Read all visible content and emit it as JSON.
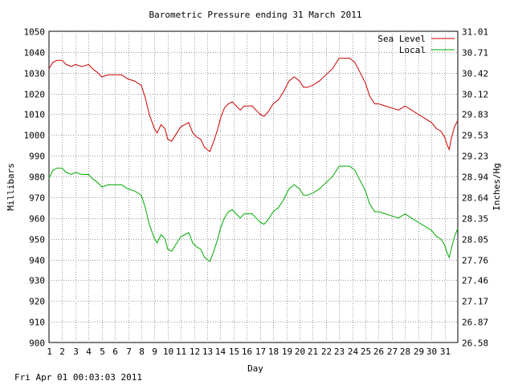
{
  "chart_data": {
    "type": "line",
    "title": "Barometric Pressure ending 31 March 2011",
    "xlabel": "Day",
    "ylabel_left": "Millibars",
    "ylabel_right": "Inches/Hg",
    "x_ticks": [
      "1",
      "2",
      "3",
      "4",
      "5",
      "6",
      "7",
      "8",
      "9",
      "10",
      "11",
      "12",
      "13",
      "14",
      "15",
      "16",
      "17",
      "18",
      "19",
      "20",
      "21",
      "22",
      "23",
      "24",
      "25",
      "26",
      "27",
      "28",
      "29",
      "30",
      "31"
    ],
    "xlim": [
      1,
      32
    ],
    "ylim": [
      900,
      1050
    ],
    "y_ticks_left": [
      "1050",
      "1040",
      "1030",
      "1020",
      "1010",
      "1000",
      "990",
      "980",
      "970",
      "960",
      "950",
      "940",
      "930",
      "920",
      "910",
      "900"
    ],
    "y_ticks_right": [
      "31.01",
      "30.71",
      "30.42",
      "30.12",
      "29.83",
      "29.53",
      "29.23",
      "28.94",
      "28.64",
      "28.35",
      "28.05",
      "27.76",
      "27.46",
      "27.17",
      "26.87",
      "26.58"
    ],
    "grid": true,
    "legend_position": "top-right",
    "series": [
      {
        "name": "Sea Level",
        "color": "#cc0000",
        "points": [
          [
            1,
            1032
          ],
          [
            1.3,
            1035
          ],
          [
            1.6,
            1036
          ],
          [
            2,
            1036
          ],
          [
            2.3,
            1034
          ],
          [
            2.7,
            1033
          ],
          [
            3,
            1034
          ],
          [
            3.5,
            1033
          ],
          [
            4,
            1034
          ],
          [
            4.3,
            1032
          ],
          [
            4.7,
            1030
          ],
          [
            5,
            1028
          ],
          [
            5.5,
            1029
          ],
          [
            6,
            1029
          ],
          [
            6.5,
            1029
          ],
          [
            7,
            1027
          ],
          [
            7.5,
            1026
          ],
          [
            8,
            1024
          ],
          [
            8.3,
            1018
          ],
          [
            8.6,
            1010
          ],
          [
            9,
            1003
          ],
          [
            9.2,
            1001
          ],
          [
            9.5,
            1005
          ],
          [
            9.8,
            1003
          ],
          [
            10,
            998
          ],
          [
            10.3,
            997
          ],
          [
            10.6,
            1000
          ],
          [
            11,
            1004
          ],
          [
            11.3,
            1005
          ],
          [
            11.6,
            1006
          ],
          [
            11.9,
            1001
          ],
          [
            12.2,
            999
          ],
          [
            12.5,
            998
          ],
          [
            12.8,
            994
          ],
          [
            13,
            993
          ],
          [
            13.2,
            992
          ],
          [
            13.5,
            997
          ],
          [
            13.8,
            1003
          ],
          [
            14,
            1008
          ],
          [
            14.3,
            1013
          ],
          [
            14.6,
            1015
          ],
          [
            14.9,
            1016
          ],
          [
            15.2,
            1014
          ],
          [
            15.5,
            1012
          ],
          [
            15.8,
            1014
          ],
          [
            16.1,
            1014
          ],
          [
            16.4,
            1014
          ],
          [
            16.7,
            1012
          ],
          [
            17,
            1010
          ],
          [
            17.3,
            1009
          ],
          [
            17.6,
            1011
          ],
          [
            18,
            1015
          ],
          [
            18.4,
            1017
          ],
          [
            18.8,
            1021
          ],
          [
            19.2,
            1026
          ],
          [
            19.6,
            1028
          ],
          [
            20,
            1026
          ],
          [
            20.3,
            1023
          ],
          [
            20.6,
            1023
          ],
          [
            21,
            1024
          ],
          [
            21.5,
            1026
          ],
          [
            22,
            1029
          ],
          [
            22.5,
            1032
          ],
          [
            23,
            1037
          ],
          [
            23.4,
            1037
          ],
          [
            23.8,
            1037
          ],
          [
            24.2,
            1035
          ],
          [
            24.6,
            1030
          ],
          [
            25,
            1025
          ],
          [
            25.3,
            1019
          ],
          [
            25.7,
            1015
          ],
          [
            26,
            1015
          ],
          [
            26.5,
            1014
          ],
          [
            27,
            1013
          ],
          [
            27.5,
            1012
          ],
          [
            28,
            1014
          ],
          [
            28.5,
            1012
          ],
          [
            29,
            1010
          ],
          [
            29.5,
            1008
          ],
          [
            30,
            1006
          ],
          [
            30.4,
            1003
          ],
          [
            30.7,
            1002
          ],
          [
            31,
            999
          ],
          [
            31.2,
            995
          ],
          [
            31.35,
            993
          ],
          [
            31.5,
            998
          ],
          [
            31.75,
            1004
          ],
          [
            32,
            1007
          ]
        ]
      },
      {
        "name": "Local",
        "color": "#00aa00",
        "points": [
          [
            1,
            979
          ],
          [
            1.3,
            983
          ],
          [
            1.6,
            984
          ],
          [
            2,
            984
          ],
          [
            2.3,
            982
          ],
          [
            2.7,
            981
          ],
          [
            3,
            982
          ],
          [
            3.5,
            981
          ],
          [
            4,
            981
          ],
          [
            4.3,
            979
          ],
          [
            4.7,
            977
          ],
          [
            5,
            975
          ],
          [
            5.5,
            976
          ],
          [
            6,
            976
          ],
          [
            6.5,
            976
          ],
          [
            7,
            974
          ],
          [
            7.5,
            973
          ],
          [
            8,
            971
          ],
          [
            8.3,
            965
          ],
          [
            8.6,
            957
          ],
          [
            9,
            950
          ],
          [
            9.2,
            948
          ],
          [
            9.5,
            952
          ],
          [
            9.8,
            950
          ],
          [
            10,
            945
          ],
          [
            10.3,
            944
          ],
          [
            10.6,
            947
          ],
          [
            11,
            951
          ],
          [
            11.3,
            952
          ],
          [
            11.6,
            953
          ],
          [
            11.9,
            948
          ],
          [
            12.2,
            946
          ],
          [
            12.5,
            945
          ],
          [
            12.8,
            941
          ],
          [
            13,
            940
          ],
          [
            13.2,
            939
          ],
          [
            13.5,
            944
          ],
          [
            13.8,
            950
          ],
          [
            14,
            955
          ],
          [
            14.3,
            960
          ],
          [
            14.6,
            963
          ],
          [
            14.9,
            964
          ],
          [
            15.2,
            962
          ],
          [
            15.5,
            960
          ],
          [
            15.8,
            962
          ],
          [
            16.1,
            962
          ],
          [
            16.4,
            962
          ],
          [
            16.7,
            960
          ],
          [
            17,
            958
          ],
          [
            17.3,
            957
          ],
          [
            17.6,
            959
          ],
          [
            18,
            963
          ],
          [
            18.4,
            965
          ],
          [
            18.8,
            969
          ],
          [
            19.2,
            974
          ],
          [
            19.6,
            976
          ],
          [
            20,
            974
          ],
          [
            20.3,
            971
          ],
          [
            20.6,
            971
          ],
          [
            21,
            972
          ],
          [
            21.5,
            974
          ],
          [
            22,
            977
          ],
          [
            22.5,
            980
          ],
          [
            23,
            985
          ],
          [
            23.4,
            985
          ],
          [
            23.8,
            985
          ],
          [
            24.2,
            983
          ],
          [
            24.6,
            978
          ],
          [
            25,
            973
          ],
          [
            25.3,
            967
          ],
          [
            25.7,
            963
          ],
          [
            26,
            963
          ],
          [
            26.5,
            962
          ],
          [
            27,
            961
          ],
          [
            27.5,
            960
          ],
          [
            28,
            962
          ],
          [
            28.5,
            960
          ],
          [
            29,
            958
          ],
          [
            29.5,
            956
          ],
          [
            30,
            954
          ],
          [
            30.4,
            951
          ],
          [
            30.7,
            950
          ],
          [
            31,
            947
          ],
          [
            31.2,
            943
          ],
          [
            31.35,
            941
          ],
          [
            31.5,
            945
          ],
          [
            31.75,
            951
          ],
          [
            32,
            955
          ]
        ]
      }
    ]
  },
  "footer": "Fri Apr 01 00:03:03 2011"
}
